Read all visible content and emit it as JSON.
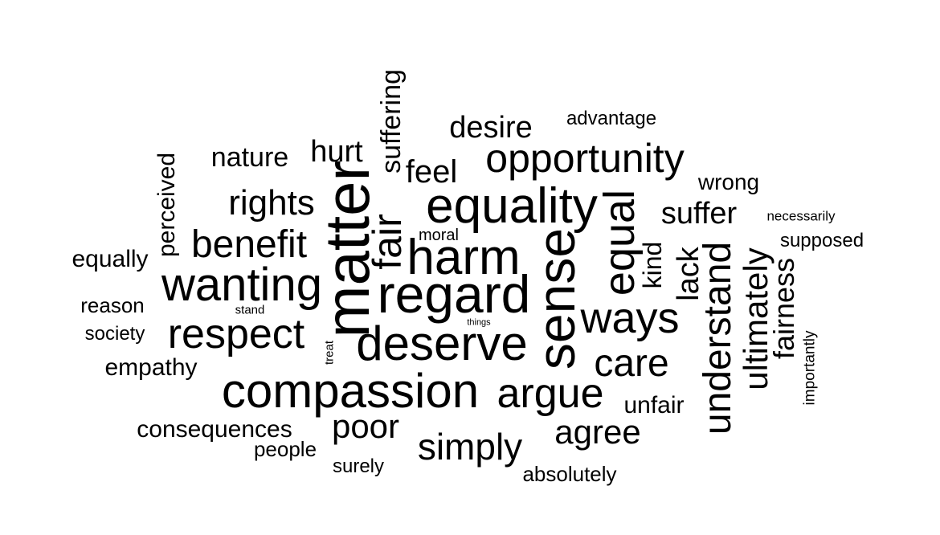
{
  "text_color": "#000000",
  "background_color": "#ffffff",
  "words": [
    "matter",
    "regard",
    "compassion",
    "sense",
    "equality",
    "deserve",
    "wanting",
    "harm",
    "respect",
    "opportunity",
    "equal",
    "ways",
    "benefit",
    "argue",
    "rights",
    "understand",
    "care",
    "simply",
    "poor",
    "fair",
    "agree",
    "ultimately",
    "suffer",
    "desire",
    "feel",
    "hurt",
    "suffering",
    "lack",
    "fairness",
    "nature",
    "perceived",
    "consequences",
    "empathy",
    "unfair",
    "kind",
    "equally",
    "wrong",
    "absolutely",
    "people",
    "reason",
    "supposed",
    "advantage",
    "society",
    "surely",
    "moral",
    "necessarily",
    "importantly",
    "stand",
    "treat",
    "things"
  ]
}
